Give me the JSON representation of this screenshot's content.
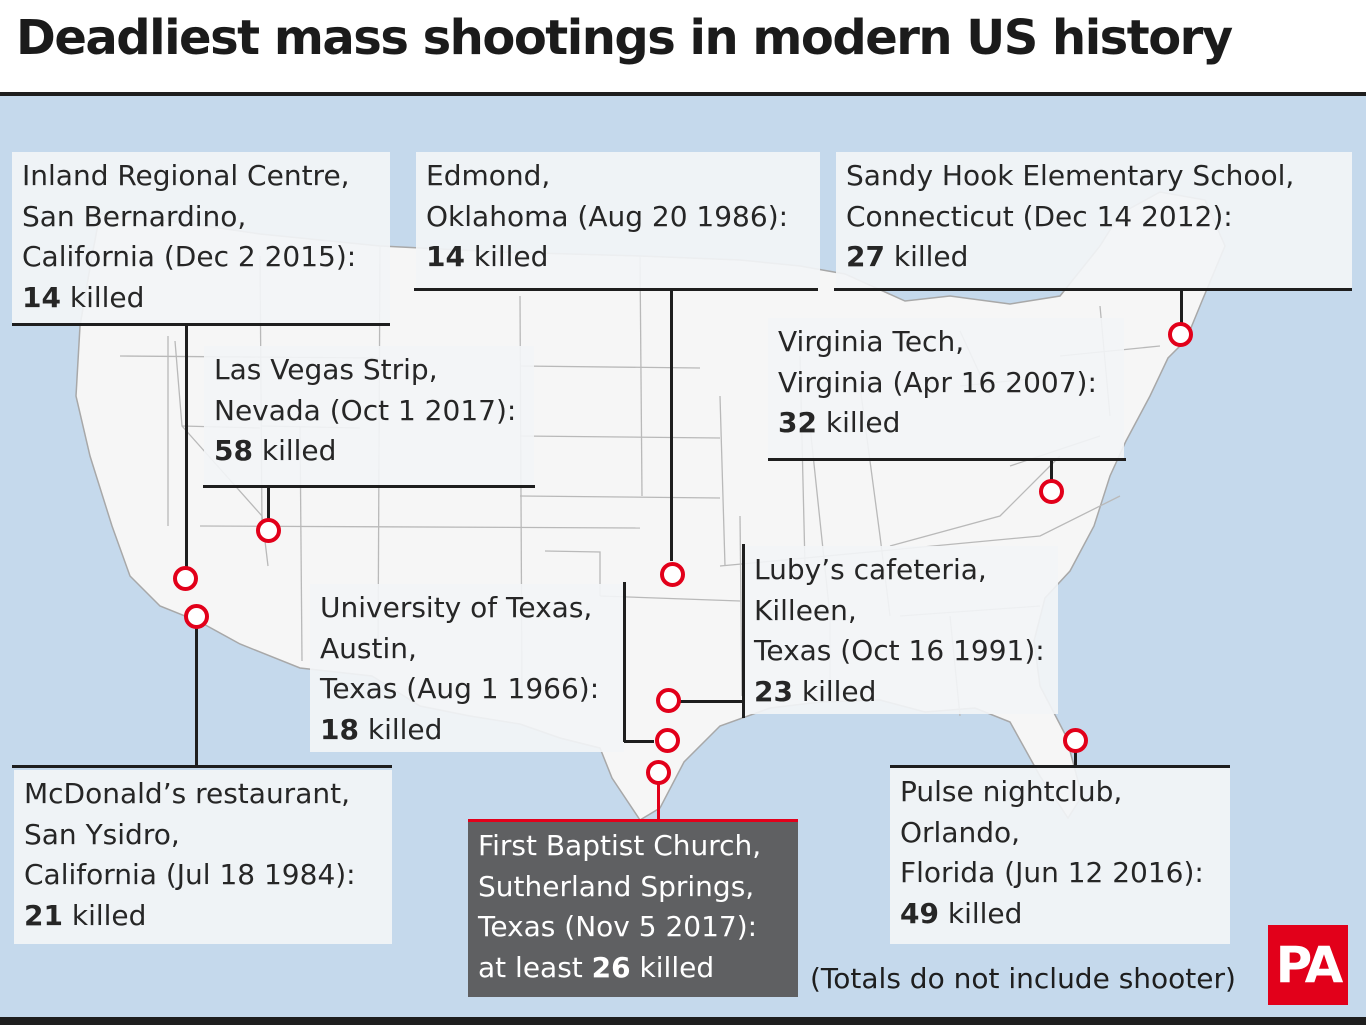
{
  "title": "Deadliest mass shootings in modern US history",
  "footnote": "(Totals do not include shooter)",
  "logo_text": "PA",
  "colors": {
    "water": "#c5d9ec",
    "land": "#f6f6f6",
    "marker": "#e2001a",
    "highlight_box": "#5f6062"
  },
  "events": [
    {
      "lines": [
        "Inland Regional Centre,",
        "San Bernardino,",
        "California (Dec 2 2015):"
      ],
      "count": "14",
      "suffix": " killed"
    },
    {
      "lines": [
        "Edmond,",
        "Oklahoma (Aug 20 1986):"
      ],
      "count": "14",
      "suffix": " killed"
    },
    {
      "lines": [
        "Sandy Hook Elementary School,",
        "Connecticut (Dec 14 2012):"
      ],
      "count": "27",
      "suffix": " killed"
    },
    {
      "lines": [
        "Las Vegas Strip,",
        "Nevada (Oct 1 2017):"
      ],
      "count": "58",
      "suffix": " killed"
    },
    {
      "lines": [
        "Virginia Tech,",
        "Virginia (Apr 16 2007):"
      ],
      "count": "32",
      "suffix": " killed"
    },
    {
      "lines": [
        "Luby’s cafeteria,",
        "Killeen,",
        "Texas (Oct 16 1991):"
      ],
      "count": "23",
      "suffix": " killed"
    },
    {
      "lines": [
        "University of Texas,",
        "Austin,",
        "Texas (Aug 1 1966):"
      ],
      "count": "18",
      "suffix": " killed"
    },
    {
      "lines": [
        "McDonald’s restaurant,",
        "San Ysidro,",
        "California (Jul 18 1984):"
      ],
      "count": "21",
      "suffix": " killed"
    },
    {
      "lines": [
        "First Baptist Church,",
        "Sutherland Springs,",
        "Texas (Nov 5 2017):"
      ],
      "prefix": "at least ",
      "count": "26",
      "suffix": " killed"
    },
    {
      "lines": [
        "Pulse nightclub,",
        "Orlando,",
        "Florida (Jun 12 2016):"
      ],
      "count": "49",
      "suffix": " killed"
    }
  ]
}
